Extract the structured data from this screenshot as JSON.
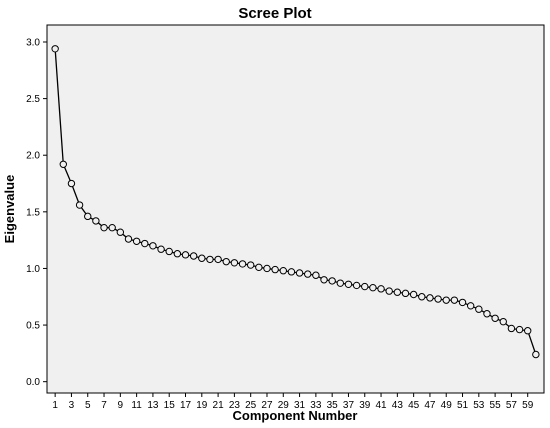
{
  "chart_data": {
    "type": "line",
    "title": "Scree Plot",
    "xlabel": "Component Number",
    "ylabel": "Eigenvalue",
    "xlim": [
      0,
      61
    ],
    "ylim": [
      -0.1,
      3.15
    ],
    "yticks": [
      0.0,
      0.5,
      1.0,
      1.5,
      2.0,
      2.5,
      3.0
    ],
    "ytick_labels": [
      "0.0",
      "0.5",
      "1.0",
      "1.5",
      "2.0",
      "2.5",
      "3.0"
    ],
    "xticks": [
      1,
      3,
      5,
      7,
      9,
      11,
      13,
      15,
      17,
      19,
      21,
      23,
      25,
      27,
      29,
      31,
      33,
      35,
      37,
      39,
      41,
      43,
      45,
      47,
      49,
      51,
      53,
      55,
      57,
      59
    ],
    "grid": false,
    "markers": "open-circle",
    "colors": {
      "plot_background": "#f0f0f0",
      "line": "#000000",
      "marker_fill": "#f0f0f0"
    },
    "series": [
      {
        "x": [
          1,
          2,
          3,
          4,
          5,
          6,
          7,
          8,
          9,
          10,
          11,
          12,
          13,
          14,
          15,
          16,
          17,
          18,
          19,
          20,
          21,
          22,
          23,
          24,
          25,
          26,
          27,
          28,
          29,
          30,
          31,
          32,
          33,
          34,
          35,
          36,
          37,
          38,
          39,
          40,
          41,
          42,
          43,
          44,
          45,
          46,
          47,
          48,
          49,
          50,
          51,
          52,
          53,
          54,
          55,
          56,
          57,
          58,
          59,
          60
        ],
        "y": [
          2.94,
          1.92,
          1.75,
          1.56,
          1.46,
          1.42,
          1.36,
          1.36,
          1.32,
          1.26,
          1.24,
          1.22,
          1.2,
          1.17,
          1.15,
          1.13,
          1.12,
          1.11,
          1.09,
          1.08,
          1.08,
          1.06,
          1.05,
          1.04,
          1.03,
          1.01,
          1.0,
          0.99,
          0.98,
          0.97,
          0.96,
          0.95,
          0.94,
          0.9,
          0.89,
          0.87,
          0.86,
          0.85,
          0.84,
          0.83,
          0.82,
          0.8,
          0.79,
          0.78,
          0.77,
          0.75,
          0.74,
          0.73,
          0.72,
          0.72,
          0.7,
          0.67,
          0.64,
          0.6,
          0.56,
          0.53,
          0.47,
          0.46,
          0.45,
          0.24
        ]
      }
    ]
  }
}
